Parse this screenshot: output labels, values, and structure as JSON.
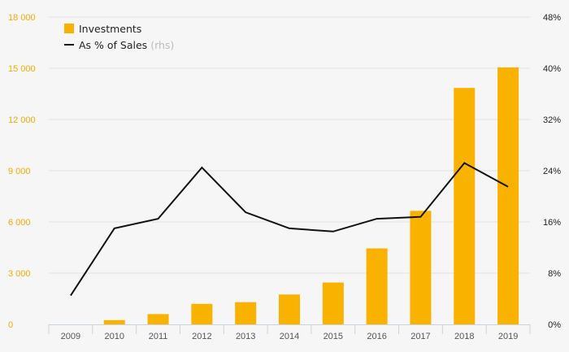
{
  "chart_data": {
    "type": "bar+line",
    "categories": [
      "2009",
      "2010",
      "2011",
      "2012",
      "2013",
      "2014",
      "2015",
      "2016",
      "2017",
      "2018",
      "2019"
    ],
    "series": [
      {
        "name": "Investments",
        "type": "bar",
        "axis": "left",
        "color": "#f9b200",
        "values": [
          0,
          250,
          600,
          1200,
          1300,
          1750,
          2450,
          4450,
          6650,
          13850,
          15050
        ]
      },
      {
        "name": "As % of Sales",
        "name_suffix": "(rhs)",
        "type": "line",
        "axis": "right",
        "color": "#111111",
        "values": [
          4.5,
          15.0,
          16.5,
          24.5,
          17.5,
          15.0,
          14.5,
          16.5,
          16.8,
          25.2,
          21.5
        ]
      }
    ],
    "y_left": {
      "range": [
        0,
        18000
      ],
      "ticks": [
        0,
        3000,
        6000,
        9000,
        12000,
        15000,
        18000
      ],
      "tick_labels": [
        "0",
        "3 000",
        "6 000",
        "9 000",
        "12 000",
        "15 000",
        "18 000"
      ],
      "color": "#f0ab00"
    },
    "y_right": {
      "range": [
        0,
        48
      ],
      "ticks": [
        0,
        8,
        16,
        24,
        32,
        40,
        48
      ],
      "tick_labels": [
        "0%",
        "8%",
        "16%",
        "24%",
        "32%",
        "40%",
        "48%"
      ]
    },
    "grid": true,
    "legend_position": "top-left"
  }
}
